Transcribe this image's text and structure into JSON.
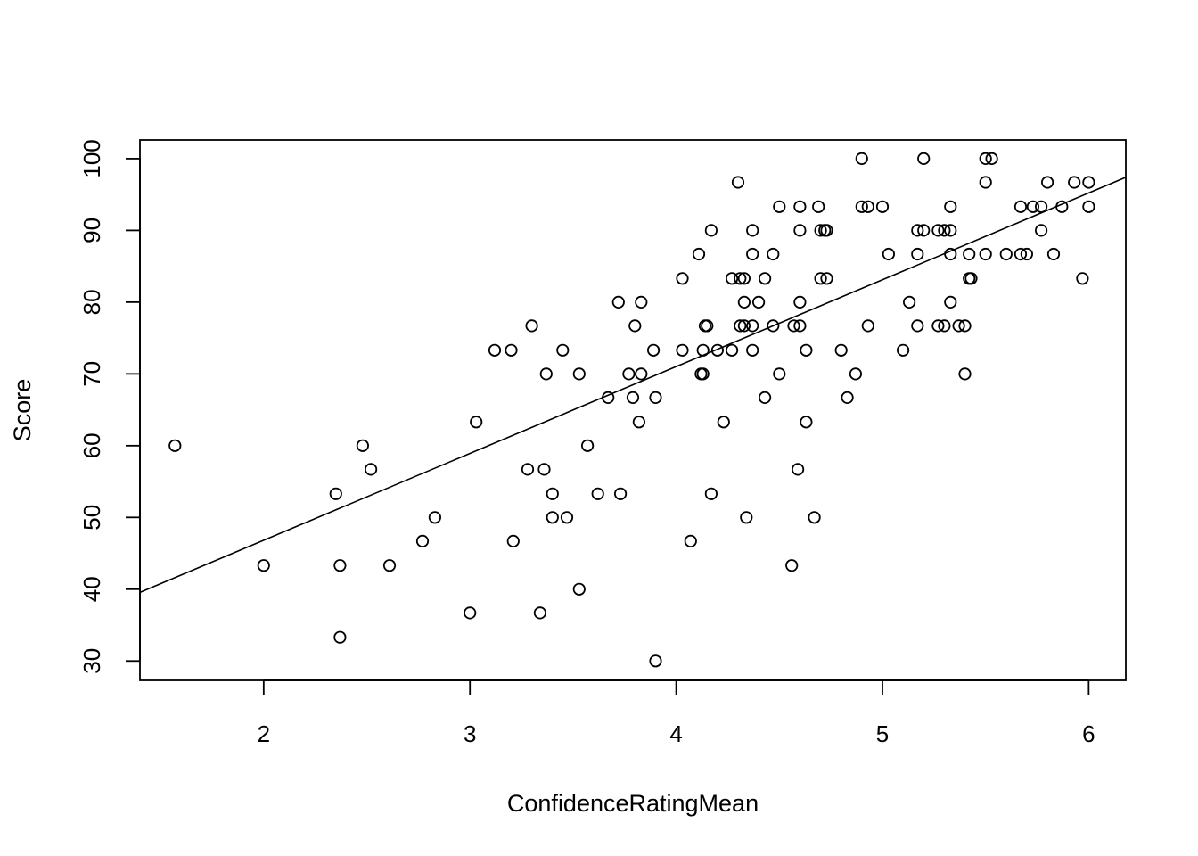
{
  "chart_data": {
    "type": "scatter",
    "title": "",
    "xlabel": "ConfidenceRatingMean",
    "ylabel": "Score",
    "xlim": [
      1.4,
      6.18
    ],
    "ylim": [
      27.3,
      102.6
    ],
    "x_ticks": [
      2,
      3,
      4,
      5,
      6
    ],
    "y_ticks": [
      30,
      40,
      50,
      60,
      70,
      80,
      90,
      100
    ],
    "grid": false,
    "legend": "none",
    "marker": "open-circle",
    "colors": {
      "points": "#000000",
      "line": "#000000",
      "frame": "#000000"
    },
    "regression_line": {
      "intercept": 22.62,
      "slope": 12.1
    },
    "points": [
      [
        1.57,
        60
      ],
      [
        2.0,
        43.3
      ],
      [
        2.35,
        53.3
      ],
      [
        2.37,
        43.3
      ],
      [
        2.37,
        33.3
      ],
      [
        2.48,
        60
      ],
      [
        2.52,
        56.7
      ],
      [
        2.61,
        43.3
      ],
      [
        2.77,
        46.7
      ],
      [
        2.83,
        50
      ],
      [
        3.0,
        36.7
      ],
      [
        3.03,
        63.3
      ],
      [
        3.12,
        73.3
      ],
      [
        3.2,
        73.3
      ],
      [
        3.21,
        46.7
      ],
      [
        3.28,
        56.7
      ],
      [
        3.3,
        76.7
      ],
      [
        3.34,
        36.7
      ],
      [
        3.36,
        56.7
      ],
      [
        3.37,
        70
      ],
      [
        3.4,
        53.3
      ],
      [
        3.4,
        50
      ],
      [
        3.45,
        73.3
      ],
      [
        3.47,
        50
      ],
      [
        3.53,
        40
      ],
      [
        3.53,
        70
      ],
      [
        3.57,
        60
      ],
      [
        3.62,
        53.3
      ],
      [
        3.67,
        66.7
      ],
      [
        3.72,
        80
      ],
      [
        3.73,
        53.3
      ],
      [
        3.77,
        70
      ],
      [
        3.79,
        66.7
      ],
      [
        3.8,
        76.7
      ],
      [
        3.82,
        63.3
      ],
      [
        3.83,
        80
      ],
      [
        3.83,
        70
      ],
      [
        3.89,
        73.3
      ],
      [
        3.9,
        66.7
      ],
      [
        3.9,
        30
      ],
      [
        4.03,
        83.3
      ],
      [
        4.03,
        73.3
      ],
      [
        4.07,
        46.7
      ],
      [
        4.11,
        86.7
      ],
      [
        4.12,
        70
      ],
      [
        4.13,
        70
      ],
      [
        4.13,
        73.3
      ],
      [
        4.14,
        76.7
      ],
      [
        4.15,
        76.7
      ],
      [
        4.17,
        53.3
      ],
      [
        4.17,
        90
      ],
      [
        4.2,
        73.3
      ],
      [
        4.23,
        63.3
      ],
      [
        4.27,
        83.3
      ],
      [
        4.27,
        73.3
      ],
      [
        4.3,
        96.7
      ],
      [
        4.31,
        76.7
      ],
      [
        4.31,
        83.3
      ],
      [
        4.33,
        83.3
      ],
      [
        4.33,
        80
      ],
      [
        4.33,
        76.7
      ],
      [
        4.34,
        50
      ],
      [
        4.37,
        90
      ],
      [
        4.37,
        86.7
      ],
      [
        4.37,
        76.7
      ],
      [
        4.37,
        73.3
      ],
      [
        4.4,
        80
      ],
      [
        4.43,
        66.7
      ],
      [
        4.43,
        83.3
      ],
      [
        4.47,
        86.7
      ],
      [
        4.47,
        76.7
      ],
      [
        4.5,
        93.3
      ],
      [
        4.5,
        70
      ],
      [
        4.56,
        43.3
      ],
      [
        4.57,
        76.7
      ],
      [
        4.59,
        56.7
      ],
      [
        4.6,
        93.3
      ],
      [
        4.6,
        90
      ],
      [
        4.6,
        80
      ],
      [
        4.6,
        76.7
      ],
      [
        4.63,
        73.3
      ],
      [
        4.63,
        63.3
      ],
      [
        4.67,
        50
      ],
      [
        4.69,
        93.3
      ],
      [
        4.7,
        90
      ],
      [
        4.7,
        83.3
      ],
      [
        4.72,
        90
      ],
      [
        4.73,
        83.3
      ],
      [
        4.73,
        90
      ],
      [
        4.8,
        73.3
      ],
      [
        4.83,
        66.7
      ],
      [
        4.87,
        70
      ],
      [
        4.9,
        100
      ],
      [
        4.9,
        93.3
      ],
      [
        4.93,
        93.3
      ],
      [
        4.93,
        76.7
      ],
      [
        5.0,
        93.3
      ],
      [
        5.03,
        86.7
      ],
      [
        5.1,
        73.3
      ],
      [
        5.13,
        80
      ],
      [
        5.17,
        90
      ],
      [
        5.17,
        86.7
      ],
      [
        5.17,
        76.7
      ],
      [
        5.2,
        100
      ],
      [
        5.2,
        90
      ],
      [
        5.27,
        90
      ],
      [
        5.27,
        76.7
      ],
      [
        5.3,
        90
      ],
      [
        5.3,
        76.7
      ],
      [
        5.33,
        93.3
      ],
      [
        5.33,
        90
      ],
      [
        5.33,
        86.7
      ],
      [
        5.33,
        80
      ],
      [
        5.37,
        76.7
      ],
      [
        5.4,
        76.7
      ],
      [
        5.4,
        70
      ],
      [
        5.42,
        86.7
      ],
      [
        5.42,
        83.3
      ],
      [
        5.43,
        83.3
      ],
      [
        5.5,
        100
      ],
      [
        5.5,
        96.7
      ],
      [
        5.5,
        86.7
      ],
      [
        5.53,
        100
      ],
      [
        5.6,
        86.7
      ],
      [
        5.67,
        93.3
      ],
      [
        5.67,
        86.7
      ],
      [
        5.7,
        86.7
      ],
      [
        5.73,
        93.3
      ],
      [
        5.77,
        93.3
      ],
      [
        5.77,
        90
      ],
      [
        5.8,
        96.7
      ],
      [
        5.83,
        86.7
      ],
      [
        5.87,
        93.3
      ],
      [
        5.93,
        96.7
      ],
      [
        5.97,
        83.3
      ],
      [
        6.0,
        96.7
      ],
      [
        6.0,
        93.3
      ]
    ]
  }
}
